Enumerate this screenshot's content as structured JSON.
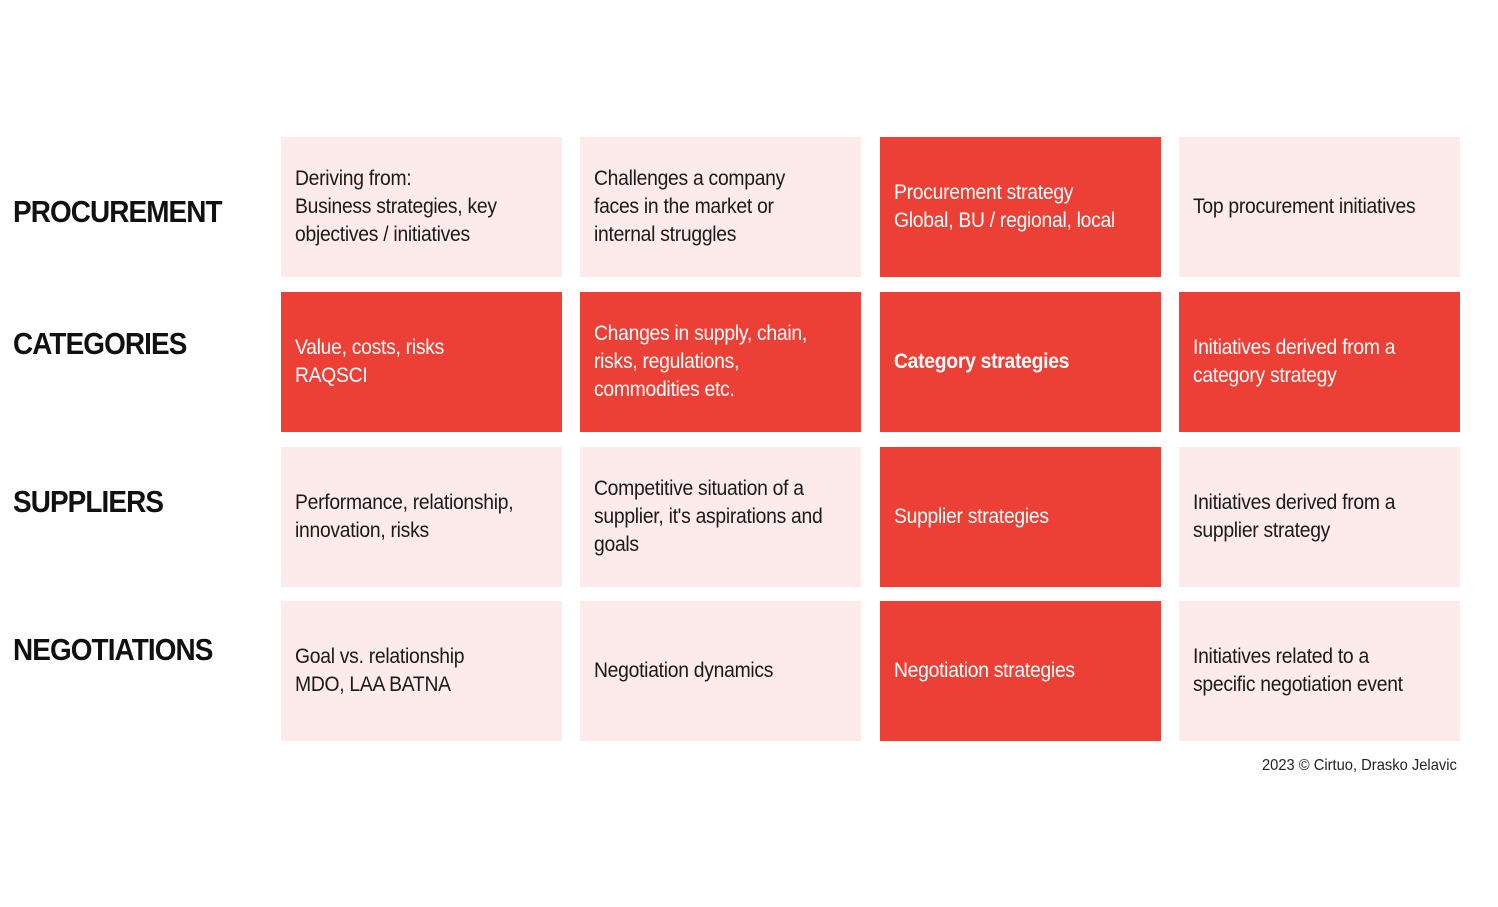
{
  "colors": {
    "accent": "#ec4036",
    "light": "#fdeaea"
  },
  "rows": [
    {
      "label": "PROCUREMENT",
      "cells": [
        {
          "text": "Deriving from:\nBusiness strategies, key objectives / initiatives",
          "style": "light"
        },
        {
          "text": "Challenges a company faces in the market or internal struggles",
          "style": "light"
        },
        {
          "text": "Procurement strategy\nGlobal, BU / regional, local",
          "style": "red"
        },
        {
          "text": "Top procurement initiatives",
          "style": "light"
        }
      ]
    },
    {
      "label": "CATEGORIES",
      "cells": [
        {
          "text": "Value, costs, risks\nRAQSCI",
          "style": "red"
        },
        {
          "text": "Changes in supply, chain, risks, regulations, commodities etc.",
          "style": "red"
        },
        {
          "text": "Category strategies",
          "style": "red bold"
        },
        {
          "text": "Initiatives derived from a category strategy",
          "style": "red"
        }
      ]
    },
    {
      "label": "SUPPLIERS",
      "cells": [
        {
          "text": "Performance, relationship, innovation, risks",
          "style": "light"
        },
        {
          "text": "Competitive situation of a supplier, it's aspirations and goals",
          "style": "light"
        },
        {
          "text": "Supplier strategies",
          "style": "red"
        },
        {
          "text": "Initiatives derived from a supplier strategy",
          "style": "light"
        }
      ]
    },
    {
      "label": "NEGOTIATIONS",
      "cells": [
        {
          "text": "Goal vs. relationship\nMDO, LAA BATNA",
          "style": "light"
        },
        {
          "text": "Negotiation dynamics",
          "style": "light"
        },
        {
          "text": "Negotiation strategies",
          "style": "red"
        },
        {
          "text": "Initiatives related to a specific negotiation  event",
          "style": "light"
        }
      ]
    }
  ],
  "footer": "2023 © Cirtuo,  Drasko Jelavic"
}
